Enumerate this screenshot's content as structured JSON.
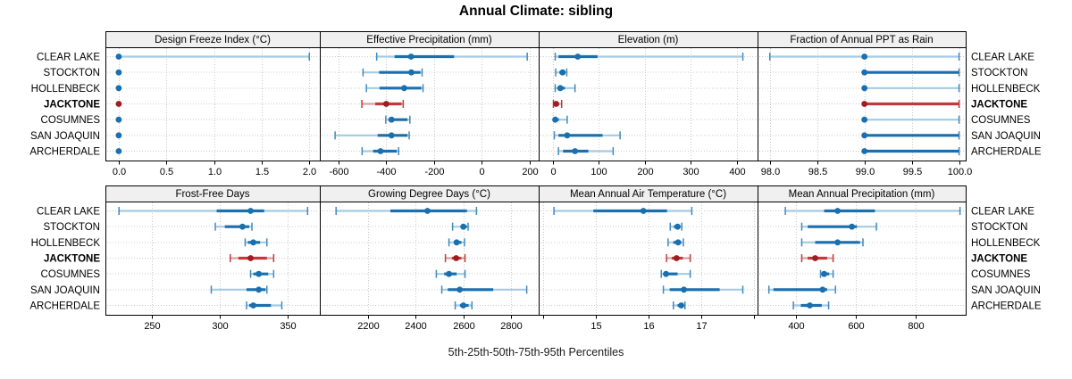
{
  "title": "Annual Climate: sibling",
  "caption": "5th-25th-50th-75th-95th Percentiles",
  "colors": {
    "normal_dot": "#1a6fae",
    "normal_thick": "#1a6fae",
    "normal_light": "#a3cbe3",
    "normal_cap": "#4189bf",
    "highlight_dot": "#9e1c22",
    "highlight_thick": "#c03a3c",
    "highlight_light": "#daa0a0",
    "highlight_cap": "#c03a3c",
    "header_bg": "#f0f0f0",
    "panel_border": "#000000",
    "grid": "#c9c9c9",
    "text": "#000000"
  },
  "chart_data": {
    "type": "dotplot-percentile-trellis",
    "percentile_labels": [
      "5th",
      "25th",
      "50th",
      "75th",
      "95th"
    ],
    "stations": [
      "CLEAR LAKE",
      "STOCKTON",
      "HOLLENBECK",
      "JACKTONE",
      "COSUMNES",
      "SAN JOAQUIN",
      "ARCHERDALE"
    ],
    "highlight_station": "JACKTONE",
    "grid": "dotted-both-axes",
    "legend_position": "none",
    "panels": [
      {
        "title": "Design Freeze Index (°C)",
        "ticks": [
          0,
          0.5,
          1,
          1.5,
          2
        ],
        "tick_labels": [
          "0.0",
          "0.5",
          "1.0",
          "1.5",
          "2.0"
        ],
        "minor_ticks": [],
        "domain": [
          -0.14,
          2.11
        ],
        "series": [
          [
            0,
            0,
            0,
            0,
            2.0
          ],
          [
            0,
            0,
            0,
            0,
            0
          ],
          [
            0,
            0,
            0,
            0,
            0
          ],
          [
            0,
            0,
            0,
            0,
            0
          ],
          [
            0,
            0,
            0,
            0,
            0
          ],
          [
            0,
            0,
            0,
            0,
            0
          ],
          [
            0,
            0,
            0,
            0,
            0
          ]
        ]
      },
      {
        "title": "Effective Precipitation (mm)",
        "ticks": [
          -600,
          -400,
          -200,
          0,
          200
        ],
        "tick_labels": [
          "-600",
          "-400",
          "-200",
          "0",
          "200"
        ],
        "minor_ticks": [],
        "domain": [
          -678,
          238
        ],
        "series": [
          [
            -440,
            -365,
            -296,
            -116,
            190
          ],
          [
            -497,
            -430,
            -295,
            -257,
            -250
          ],
          [
            -483,
            -428,
            -325,
            -253,
            -246
          ],
          [
            -502,
            -446,
            -400,
            -336,
            -329
          ],
          [
            -402,
            -391,
            -378,
            -311,
            -301
          ],
          [
            -614,
            -436,
            -378,
            -311,
            -304
          ],
          [
            -501,
            -455,
            -424,
            -356,
            -348
          ]
        ]
      },
      {
        "title": "Elevation (m)",
        "ticks": [
          0,
          100,
          200,
          300,
          400
        ],
        "tick_labels": [
          "0",
          "100",
          "200",
          "300",
          "400"
        ],
        "minor_ticks": [],
        "domain": [
          -31,
          445
        ],
        "series": [
          [
            5,
            12,
            54,
            97,
            413
          ],
          [
            6,
            14,
            21,
            27,
            30
          ],
          [
            5,
            11,
            16,
            26,
            48
          ],
          [
            1,
            4,
            7,
            13,
            19
          ],
          [
            1,
            3,
            5,
            13,
            31
          ],
          [
            3,
            12,
            31,
            108,
            146
          ],
          [
            12,
            22,
            48,
            77,
            131
          ]
        ]
      },
      {
        "title": "Fraction of Annual PPT as Rain",
        "ticks": [
          98,
          98.5,
          99,
          99.5,
          100
        ],
        "tick_labels": [
          "98.0",
          "98.5",
          "99.0",
          "99.5",
          "100.0"
        ],
        "minor_ticks": [],
        "domain": [
          97.87,
          100.07
        ],
        "series": [
          [
            98,
            99,
            99,
            99,
            100
          ],
          [
            99,
            99,
            99,
            100,
            100
          ],
          [
            99,
            99,
            99,
            99,
            100
          ],
          [
            99,
            99,
            99,
            100,
            100
          ],
          [
            99,
            99,
            99,
            99,
            100
          ],
          [
            99,
            99,
            99,
            100,
            100
          ],
          [
            99,
            99,
            99,
            100,
            100
          ]
        ]
      },
      {
        "title": "Frost-Free Days",
        "ticks": [
          250,
          300,
          350
        ],
        "tick_labels": [
          "250",
          "300",
          "350"
        ],
        "minor_ticks": [],
        "domain": [
          216,
          374
        ],
        "series": [
          [
            226,
            298,
            323,
            333,
            365
          ],
          [
            297,
            304,
            317,
            322,
            324
          ],
          [
            319,
            321,
            325,
            330,
            335
          ],
          [
            308,
            314,
            323,
            335,
            340
          ],
          [
            323,
            325,
            329,
            336,
            340
          ],
          [
            294,
            320,
            329,
            334,
            335
          ],
          [
            320,
            322,
            325,
            338,
            346
          ]
        ]
      },
      {
        "title": "Growing Degree Days (°C)",
        "ticks": [
          2200,
          2400,
          2600,
          2800
        ],
        "tick_labels": [
          "2200",
          "2400",
          "2600",
          "2800"
        ],
        "minor_ticks": [],
        "domain": [
          2000,
          2915
        ],
        "series": [
          [
            2068,
            2295,
            2450,
            2615,
            2655
          ],
          [
            2555,
            2590,
            2600,
            2615,
            2620
          ],
          [
            2540,
            2560,
            2572,
            2592,
            2605
          ],
          [
            2525,
            2552,
            2570,
            2592,
            2607
          ],
          [
            2487,
            2520,
            2540,
            2572,
            2607
          ],
          [
            2510,
            2535,
            2585,
            2725,
            2865
          ],
          [
            2566,
            2586,
            2600,
            2622,
            2636
          ]
        ]
      },
      {
        "title": "Mean Annual Air Temperature (°C)",
        "ticks": [
          15,
          16,
          17
        ],
        "tick_labels": [
          "15",
          "16",
          "17"
        ],
        "minor_ticks": [
          14,
          18
        ],
        "domain": [
          13.91,
          18.07
        ],
        "series": [
          [
            14.2,
            14.95,
            15.9,
            16.35,
            16.82
          ],
          [
            16.41,
            16.48,
            16.55,
            16.6,
            16.63
          ],
          [
            16.37,
            16.47,
            16.56,
            16.62,
            16.66
          ],
          [
            16.34,
            16.44,
            16.53,
            16.65,
            16.79
          ],
          [
            16.24,
            16.28,
            16.33,
            16.55,
            16.79
          ],
          [
            16.28,
            16.4,
            16.67,
            17.35,
            17.79
          ],
          [
            16.47,
            16.55,
            16.62,
            16.66,
            16.69
          ]
        ]
      },
      {
        "title": "Mean Annual Precipitation (mm)",
        "ticks": [
          400,
          600,
          800
        ],
        "tick_labels": [
          "400",
          "600",
          "800"
        ],
        "minor_ticks": [],
        "domain": [
          272,
          969
        ],
        "series": [
          [
            365,
            495,
            540,
            665,
            950
          ],
          [
            420,
            440,
            588,
            605,
            670
          ],
          [
            420,
            465,
            540,
            615,
            625
          ],
          [
            420,
            440,
            465,
            505,
            525
          ],
          [
            483,
            488,
            495,
            512,
            525
          ],
          [
            310,
            325,
            490,
            505,
            533
          ],
          [
            392,
            417,
            447,
            487,
            510
          ]
        ]
      }
    ]
  }
}
